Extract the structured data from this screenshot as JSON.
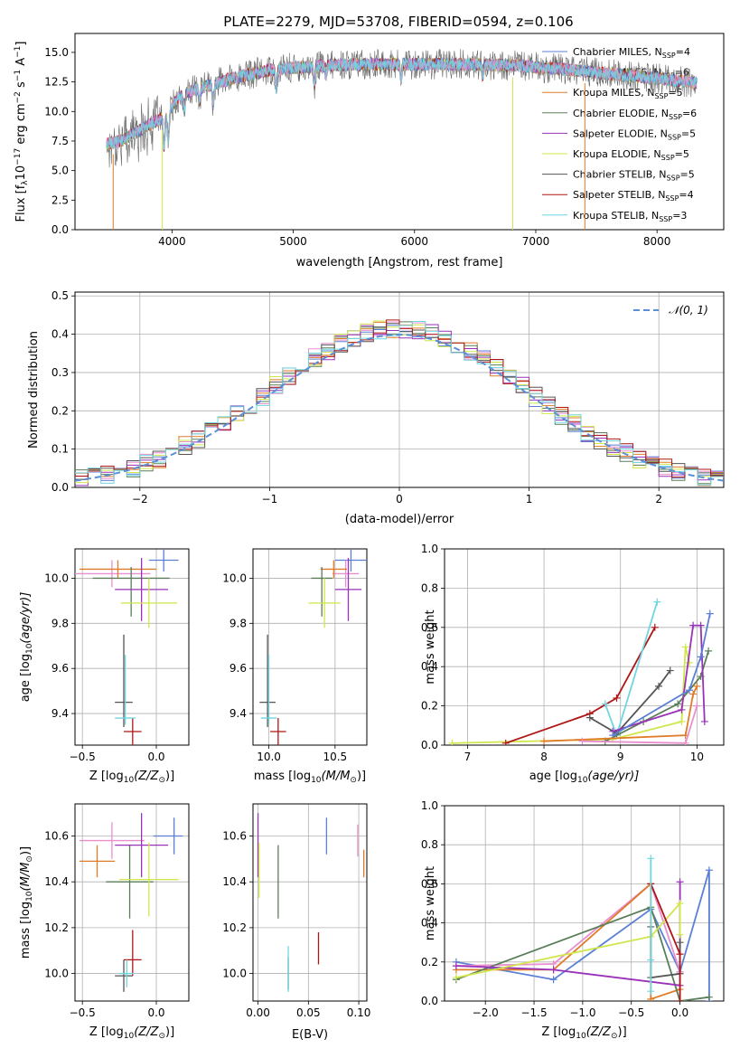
{
  "colors": {
    "chabrier_miles": "#5b7fd6",
    "salpeter_miles": "#e88fd0",
    "kroupa_miles": "#e07b28",
    "chabrier_elodie": "#5a7e5a",
    "salpeter_elodie": "#9932b8",
    "kroupa_elodie": "#d0e64a",
    "chabrier_stelib": "#555555",
    "salpeter_stelib": "#b01515",
    "kroupa_stelib": "#6fd6df"
  },
  "chart_data": [
    {
      "id": "spectrum",
      "type": "line",
      "title": "PLATE=2279, MJD=53708, FIBERID=0594, z=0.106",
      "xlabel": "wavelength [Angstrom, rest frame]",
      "ylabel": "Flux [f",
      "ylabel_parts": [
        "Flux [f",
        "λ",
        "10",
        "−17",
        " erg cm",
        "−2",
        " s",
        "−1",
        " A",
        "−1",
        "]"
      ],
      "xlim": [
        3200,
        8550
      ],
      "ylim": [
        0,
        16.6
      ],
      "xticks": [
        4000,
        5000,
        6000,
        7000,
        8000
      ],
      "yticks": [
        0.0,
        2.5,
        5.0,
        7.5,
        10.0,
        12.5,
        15.0
      ],
      "continuum": {
        "x": [
          3450,
          3600,
          3800,
          3950,
          4050,
          4200,
          4500,
          4800,
          5000,
          5300,
          5600,
          6000,
          6400,
          6800,
          7200,
          7600,
          8000,
          8330
        ],
        "y": [
          7.2,
          7.6,
          8.8,
          9.6,
          11.2,
          11.9,
          12.8,
          13.5,
          13.7,
          13.9,
          14.0,
          14.0,
          14.0,
          13.9,
          13.6,
          13.2,
          12.8,
          12.4
        ]
      },
      "legend_position": "right",
      "legend": [
        {
          "series": "chabrier_miles",
          "text": "Chabrier MILES, N",
          "sub": "SSP",
          "tail": "=4"
        },
        {
          "series": "salpeter_miles",
          "text": "Salpeter MILES, N",
          "sub": "SSP",
          "tail": "=6"
        },
        {
          "series": "kroupa_miles",
          "text": "Kroupa MILES, N",
          "sub": "SSP",
          "tail": "=5"
        },
        {
          "series": "chabrier_elodie",
          "text": "Chabrier ELODIE, N",
          "sub": "SSP",
          "tail": "=6"
        },
        {
          "series": "salpeter_elodie",
          "text": "Salpeter ELODIE, N",
          "sub": "SSP",
          "tail": "=5"
        },
        {
          "series": "kroupa_elodie",
          "text": "Kroupa ELODIE, N",
          "sub": "SSP",
          "tail": "=5"
        },
        {
          "series": "chabrier_stelib",
          "text": "Chabrier STELIB, N",
          "sub": "SSP",
          "tail": "=5"
        },
        {
          "series": "salpeter_stelib",
          "text": "Salpeter STELIB, N",
          "sub": "SSP",
          "tail": "=4"
        },
        {
          "series": "kroupa_stelib",
          "text": "Kroupa STELIB, N",
          "sub": "SSP",
          "tail": "=3"
        }
      ]
    },
    {
      "id": "residuals",
      "type": "histogram",
      "xlabel": "(data-model)/error",
      "ylabel": "Normed distribution",
      "xlim": [
        -2.5,
        2.5
      ],
      "ylim": [
        0,
        0.51
      ],
      "xticks": [
        -2,
        -1,
        0,
        1,
        2
      ],
      "yticks": [
        0.0,
        0.1,
        0.2,
        0.3,
        0.4,
        0.5
      ],
      "bin_width": 0.1,
      "reference_curve": {
        "label": "𝒩(0, 1)",
        "style": "dashed",
        "color": "#5b8fd6"
      },
      "legend_position": "top-right"
    },
    {
      "id": "age_vs_Z",
      "type": "errorbar",
      "xlabel": "Z [log",
      "xlabel_parts": [
        "Z [log",
        "10",
        "(Z/Z",
        "⊙",
        ")]"
      ],
      "ylabel_parts": [
        "age  [log",
        "10",
        "(age/yr)]"
      ],
      "xlim": [
        -0.55,
        0.22
      ],
      "ylim": [
        9.26,
        10.13
      ],
      "xticks": [
        -0.5,
        0.0
      ],
      "yticks": [
        9.4,
        9.6,
        9.8,
        10.0
      ],
      "points": [
        {
          "series": "chabrier_miles",
          "x": 0.05,
          "y": 10.08,
          "xerr": [
            0.1,
            0.1
          ],
          "yerr": [
            0.05,
            0.05
          ]
        },
        {
          "series": "salpeter_miles",
          "x": -0.3,
          "y": 10.02,
          "xerr": [
            0.26,
            0.26
          ],
          "yerr": [
            0.06,
            0.06
          ]
        },
        {
          "series": "kroupa_miles",
          "x": -0.26,
          "y": 10.04,
          "xerr": [
            0.26,
            0.26
          ],
          "yerr": [
            0.04,
            0.04
          ]
        },
        {
          "series": "chabrier_elodie",
          "x": -0.17,
          "y": 10.0,
          "xerr": [
            0.26,
            0.26
          ],
          "yerr": [
            0.17,
            0.05
          ]
        },
        {
          "series": "salpeter_elodie",
          "x": -0.1,
          "y": 9.95,
          "xerr": [
            0.18,
            0.18
          ],
          "yerr": [
            0.14,
            0.14
          ]
        },
        {
          "series": "kroupa_elodie",
          "x": -0.05,
          "y": 9.89,
          "xerr": [
            0.19,
            0.19
          ],
          "yerr": [
            0.11,
            0.11
          ]
        },
        {
          "series": "chabrier_stelib",
          "x": -0.22,
          "y": 9.45,
          "xerr": [
            0.06,
            0.06
          ],
          "yerr": [
            0.11,
            0.3
          ]
        },
        {
          "series": "salpeter_stelib",
          "x": -0.16,
          "y": 9.32,
          "xerr": [
            0.06,
            0.06
          ],
          "yerr": [
            0.06,
            0.06
          ]
        },
        {
          "series": "kroupa_stelib",
          "x": -0.21,
          "y": 9.38,
          "xerr": [
            0.07,
            0.07
          ],
          "yerr": [
            0.03,
            0.28
          ]
        }
      ]
    },
    {
      "id": "age_vs_mass",
      "type": "errorbar",
      "xlabel_parts": [
        "mass [log",
        "10",
        "(M/M",
        "⊙",
        ")]"
      ],
      "xlim": [
        9.88,
        10.74
      ],
      "ylim": [
        9.26,
        10.13
      ],
      "xticks": [
        10.0,
        10.5
      ],
      "yticks": [
        9.4,
        9.6,
        9.8,
        10.0
      ],
      "points": [
        {
          "series": "chabrier_miles",
          "x": 10.62,
          "y": 10.08,
          "xerr": [
            0.12,
            0.12
          ],
          "yerr": [
            0.05,
            0.05
          ]
        },
        {
          "series": "salpeter_miles",
          "x": 10.58,
          "y": 10.02,
          "xerr": [
            0.1,
            0.1
          ],
          "yerr": [
            0.06,
            0.06
          ]
        },
        {
          "series": "kroupa_miles",
          "x": 10.49,
          "y": 10.04,
          "xerr": [
            0.1,
            0.1
          ],
          "yerr": [
            0.04,
            0.04
          ]
        },
        {
          "series": "chabrier_elodie",
          "x": 10.4,
          "y": 10.0,
          "xerr": [
            0.08,
            0.08
          ],
          "yerr": [
            0.17,
            0.05
          ]
        },
        {
          "series": "salpeter_elodie",
          "x": 10.6,
          "y": 9.95,
          "xerr": [
            0.1,
            0.1
          ],
          "yerr": [
            0.14,
            0.14
          ]
        },
        {
          "series": "kroupa_elodie",
          "x": 10.42,
          "y": 9.89,
          "xerr": [
            0.12,
            0.12
          ],
          "yerr": [
            0.11,
            0.11
          ]
        },
        {
          "series": "chabrier_stelib",
          "x": 9.99,
          "y": 9.45,
          "xerr": [
            0.06,
            0.06
          ],
          "yerr": [
            0.11,
            0.3
          ]
        },
        {
          "series": "salpeter_stelib",
          "x": 10.07,
          "y": 9.32,
          "xerr": [
            0.06,
            0.06
          ],
          "yerr": [
            0.06,
            0.06
          ]
        },
        {
          "series": "kroupa_stelib",
          "x": 10.0,
          "y": 9.38,
          "xerr": [
            0.06,
            0.06
          ],
          "yerr": [
            0.03,
            0.28
          ]
        }
      ]
    },
    {
      "id": "weight_vs_age",
      "type": "line",
      "xlabel_parts": [
        "age  [log",
        "10",
        "(age/yr)]"
      ],
      "ylabel": "mass weight",
      "xlim": [
        6.7,
        10.35
      ],
      "ylim": [
        0,
        1
      ],
      "xticks": [
        7,
        8,
        9,
        10
      ],
      "yticks": [
        0.0,
        0.2,
        0.4,
        0.6,
        0.8,
        1.0
      ],
      "series": [
        {
          "series": "kroupa_elodie",
          "x": [
            6.8,
            8.9,
            9.8,
            9.85,
            9.9
          ],
          "y": [
            0.01,
            0.03,
            0.12,
            0.5,
            0.42
          ]
        },
        {
          "series": "salpeter_stelib",
          "x": [
            7.5,
            8.6,
            8.95,
            9.45
          ],
          "y": [
            0.01,
            0.16,
            0.24,
            0.6
          ]
        },
        {
          "series": "kroupa_stelib",
          "x": [
            8.8,
            8.95,
            9.48
          ],
          "y": [
            0.21,
            0.05,
            0.73
          ]
        },
        {
          "series": "chabrier_stelib",
          "x": [
            8.6,
            8.95,
            9.5,
            9.65
          ],
          "y": [
            0.14,
            0.06,
            0.3,
            0.38
          ]
        },
        {
          "series": "chabrier_elodie",
          "x": [
            8.8,
            9.3,
            9.75,
            10.05,
            10.15
          ],
          "y": [
            0.02,
            0.12,
            0.21,
            0.35,
            0.48
          ]
        },
        {
          "series": "salpeter_elodie",
          "x": [
            8.9,
            9.8,
            9.95,
            10.05,
            10.1
          ],
          "y": [
            0.07,
            0.18,
            0.61,
            0.61,
            0.12
          ]
        },
        {
          "series": "chabrier_miles",
          "x": [
            8.9,
            9.9,
            10.05,
            10.17
          ],
          "y": [
            0.05,
            0.28,
            0.45,
            0.67
          ]
        },
        {
          "series": "kroupa_miles",
          "x": [
            8.0,
            9.85,
            9.95,
            10.0
          ],
          "y": [
            0.02,
            0.05,
            0.26,
            0.3
          ]
        },
        {
          "series": "salpeter_miles",
          "x": [
            8.5,
            9.85,
            10.0
          ],
          "y": [
            0.02,
            0.01,
            0.2
          ]
        }
      ]
    },
    {
      "id": "mass_vs_Z",
      "type": "errorbar",
      "xlabel_parts": [
        "Z [log",
        "10",
        "(Z/Z",
        "⊙",
        ")]"
      ],
      "ylabel_parts": [
        "mass [log",
        "10",
        "(M/M",
        "⊙",
        ")]"
      ],
      "xlim": [
        -0.55,
        0.22
      ],
      "ylim": [
        9.88,
        10.74
      ],
      "xticks": [
        -0.5,
        0.0
      ],
      "yticks": [
        10.0,
        10.2,
        10.4,
        10.6
      ],
      "points": [
        {
          "series": "chabrier_miles",
          "x": 0.12,
          "y": 10.6,
          "xerr": [
            0.14,
            0.06
          ],
          "yerr": [
            0.08,
            0.08
          ]
        },
        {
          "series": "salpeter_miles",
          "x": -0.3,
          "y": 10.58,
          "xerr": [
            0.22,
            0.22
          ],
          "yerr": [
            0.08,
            0.08
          ]
        },
        {
          "series": "kroupa_miles",
          "x": -0.4,
          "y": 10.49,
          "xerr": [
            0.12,
            0.12
          ],
          "yerr": [
            0.07,
            0.07
          ]
        },
        {
          "series": "chabrier_elodie",
          "x": -0.18,
          "y": 10.4,
          "xerr": [
            0.16,
            0.16
          ],
          "yerr": [
            0.16,
            0.16
          ]
        },
        {
          "series": "salpeter_elodie",
          "x": -0.1,
          "y": 10.56,
          "xerr": [
            0.18,
            0.18
          ],
          "yerr": [
            0.14,
            0.14
          ]
        },
        {
          "series": "kroupa_elodie",
          "x": -0.05,
          "y": 10.41,
          "xerr": [
            0.2,
            0.2
          ],
          "yerr": [
            0.16,
            0.16
          ]
        },
        {
          "series": "chabrier_stelib",
          "x": -0.22,
          "y": 9.99,
          "xerr": [
            0.06,
            0.06
          ],
          "yerr": [
            0.07,
            0.07
          ]
        },
        {
          "series": "salpeter_stelib",
          "x": -0.16,
          "y": 10.06,
          "xerr": [
            0.06,
            0.06
          ],
          "yerr": [
            0.07,
            0.13
          ]
        },
        {
          "series": "kroupa_stelib",
          "x": -0.2,
          "y": 10.0,
          "xerr": [
            0.05,
            0.05
          ],
          "yerr": [
            0.06,
            0.06
          ]
        }
      ]
    },
    {
      "id": "mass_vs_ebv",
      "type": "errorbar",
      "xlabel": "E(B-V)",
      "xlim": [
        -0.005,
        0.108
      ],
      "ylim": [
        9.88,
        10.74
      ],
      "xticks": [
        0.0,
        0.05,
        0.1
      ],
      "yticks": [
        10.0,
        10.2,
        10.4,
        10.6
      ],
      "points": [
        {
          "series": "chabrier_miles",
          "x": 0.068,
          "y": 10.6,
          "xerr": [
            0,
            0
          ],
          "yerr": [
            0.08,
            0.08
          ]
        },
        {
          "series": "salpeter_miles",
          "x": 0.099,
          "y": 10.58,
          "xerr": [
            0,
            0
          ],
          "yerr": [
            0.07,
            0.07
          ]
        },
        {
          "series": "kroupa_miles",
          "x": 0.105,
          "y": 10.48,
          "xerr": [
            0,
            0
          ],
          "yerr": [
            0.06,
            0.06
          ]
        },
        {
          "series": "chabrier_elodie",
          "x": 0.02,
          "y": 10.4,
          "xerr": [
            0,
            0
          ],
          "yerr": [
            0.16,
            0.16
          ]
        },
        {
          "series": "salpeter_elodie",
          "x": 0.0,
          "y": 10.56,
          "xerr": [
            0,
            0
          ],
          "yerr": [
            0.14,
            0.14
          ]
        },
        {
          "series": "kroupa_elodie",
          "x": 0.001,
          "y": 10.45,
          "xerr": [
            0,
            0
          ],
          "yerr": [
            0.12,
            0.12
          ]
        },
        {
          "series": "chabrier_stelib",
          "x": 0.03,
          "y": 10.0,
          "xerr": [
            0,
            0
          ],
          "yerr": [
            0.07,
            0.07
          ]
        },
        {
          "series": "salpeter_stelib",
          "x": 0.06,
          "y": 10.11,
          "xerr": [
            0,
            0
          ],
          "yerr": [
            0.07,
            0.07
          ]
        },
        {
          "series": "kroupa_stelib",
          "x": 0.03,
          "y": 10.02,
          "xerr": [
            0,
            0
          ],
          "yerr": [
            0.1,
            0.1
          ]
        }
      ]
    },
    {
      "id": "weight_vs_Z",
      "type": "line",
      "xlabel_parts": [
        "Z [log",
        "10",
        "(Z/Z",
        "⊙",
        ")]"
      ],
      "ylabel": "mass weight",
      "xlim": [
        -2.42,
        0.45
      ],
      "ylim": [
        0,
        1
      ],
      "xticks": [
        -2.0,
        -1.5,
        -1.0,
        -0.5,
        0.0
      ],
      "yticks": [
        0.0,
        0.2,
        0.4,
        0.6,
        0.8,
        1.0
      ],
      "series": [
        {
          "series": "chabrier_miles",
          "x": [
            -2.3,
            -1.3,
            -0.3,
            0.0,
            0.3,
            0.3
          ],
          "y": [
            0.2,
            0.11,
            0.47,
            0.15,
            0.67,
            0.0
          ]
        },
        {
          "series": "salpeter_miles",
          "x": [
            -2.3,
            -1.3,
            -0.3,
            0.0
          ],
          "y": [
            0.18,
            0.19,
            0.6,
            0.15
          ]
        },
        {
          "series": "kroupa_miles",
          "x": [
            -2.3,
            -1.3,
            -0.3,
            -0.3,
            0.0
          ],
          "y": [
            0.16,
            0.16,
            0.6,
            0.01,
            0.06
          ]
        },
        {
          "series": "chabrier_elodie",
          "x": [
            -2.3,
            -0.3,
            0.0,
            0.3
          ],
          "y": [
            0.11,
            0.48,
            0.0,
            0.02
          ]
        },
        {
          "series": "salpeter_elodie",
          "x": [
            -2.3,
            -1.3,
            0.0,
            0.0
          ],
          "y": [
            0.18,
            0.16,
            0.08,
            0.61
          ]
        },
        {
          "series": "kroupa_elodie",
          "x": [
            -2.3,
            -0.3,
            0.0,
            0.0
          ],
          "y": [
            0.12,
            0.33,
            0.5,
            0.34
          ]
        },
        {
          "series": "chabrier_stelib",
          "x": [
            -0.3,
            -0.3,
            0.0,
            0.0
          ],
          "y": [
            0.38,
            0.12,
            0.14,
            0.3
          ]
        },
        {
          "series": "salpeter_stelib",
          "x": [
            -0.3,
            0.0,
            0.0
          ],
          "y": [
            0.6,
            0.24,
            0.0
          ]
        },
        {
          "series": "kroupa_stelib",
          "x": [
            -0.3,
            -0.3,
            -0.3
          ],
          "y": [
            0.73,
            0.05,
            0.21
          ]
        }
      ]
    }
  ]
}
